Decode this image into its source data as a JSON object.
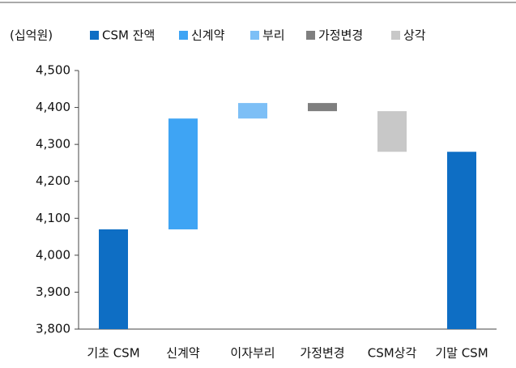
{
  "chart_data": {
    "type": "waterfall",
    "y_label": "(십억원)",
    "categories": [
      "기초 CSM",
      "신계약",
      "이자부리",
      "가정변경",
      "CSM상각",
      "기말 CSM"
    ],
    "series": [
      {
        "name": "CSM 잔액",
        "color": "#0e6ec4",
        "values": [
          4070,
          null,
          null,
          null,
          null,
          4280
        ]
      },
      {
        "name": "신계약",
        "color": "#3ea4f4",
        "values": [
          null,
          300,
          null,
          null,
          null,
          null
        ]
      },
      {
        "name": "부리",
        "color": "#7dbff6",
        "values": [
          null,
          null,
          42,
          null,
          null,
          null
        ]
      },
      {
        "name": "가정변경",
        "color": "#7f7f7f",
        "values": [
          null,
          null,
          null,
          -22,
          null,
          null
        ]
      },
      {
        "name": "상각",
        "color": "#c8c8c8",
        "values": [
          null,
          null,
          null,
          null,
          -110,
          null
        ]
      }
    ],
    "ylim": [
      3800,
      4500
    ],
    "yticks": [
      {
        "value": 3800,
        "label": "3,800"
      },
      {
        "value": 3900,
        "label": "3,900"
      },
      {
        "value": 4000,
        "label": "4,000"
      },
      {
        "value": 4100,
        "label": "4,100"
      },
      {
        "value": 4200,
        "label": "4,200"
      },
      {
        "value": 4300,
        "label": "4,300"
      },
      {
        "value": 4400,
        "label": "4,400"
      },
      {
        "value": 4500,
        "label": "4,500"
      }
    ]
  }
}
